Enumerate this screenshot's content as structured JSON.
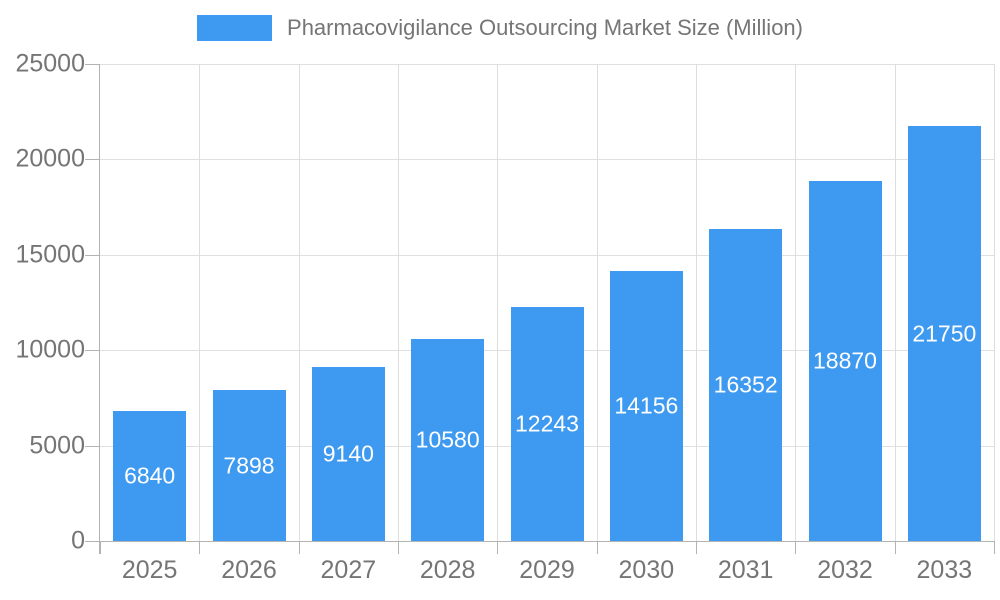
{
  "chart_data": {
    "type": "bar",
    "title": "Pharmacovigilance Outsourcing Market Size (Million)",
    "categories": [
      "2025",
      "2026",
      "2027",
      "2028",
      "2029",
      "2030",
      "2031",
      "2032",
      "2033"
    ],
    "values": [
      6840,
      7898,
      9140,
      10580,
      12243,
      14156,
      16352,
      18870,
      21750
    ],
    "xlabel": "",
    "ylabel": "",
    "ylim": [
      0,
      25000
    ],
    "ytick_step": 5000,
    "grid": "on",
    "legend_position": "top-center",
    "legend_entries": [
      "Pharmacovigilance Outsourcing Market Size (Million)"
    ],
    "value_labels": "inside-center-white",
    "colors": {
      "bar": "#3e9af0",
      "axis_text": "#757575",
      "title_text": "#757575",
      "gridline": "#e0e0e0",
      "axis_line": "#b3b3b3",
      "value_label": "#ffffff",
      "background": "#ffffff"
    }
  }
}
